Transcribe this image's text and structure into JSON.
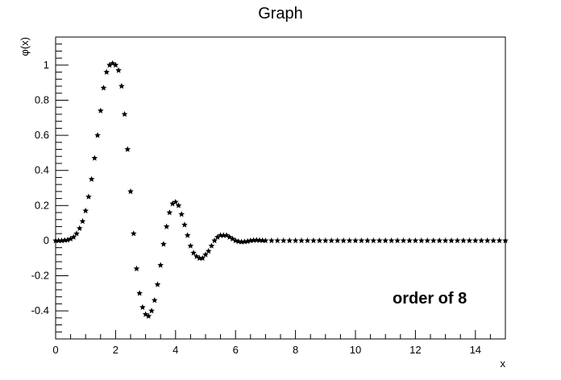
{
  "chart_data": {
    "type": "scatter",
    "title": "Graph",
    "xlabel": "x",
    "ylabel": "φ(x)",
    "annotation": "order of 8",
    "xlim": [
      0,
      15
    ],
    "ylim": [
      -0.56,
      1.16
    ],
    "xticks": [
      0,
      2,
      4,
      6,
      8,
      10,
      12,
      14
    ],
    "yticks": [
      -0.4,
      -0.2,
      0,
      0.2,
      0.4,
      0.6,
      0.8,
      1
    ],
    "xtick_labels": [
      "0",
      "2",
      "4",
      "6",
      "8",
      "10",
      "12",
      "14"
    ],
    "ytick_labels": [
      "-0.4",
      "-0.2",
      "0",
      "0.2",
      "0.4",
      "0.6",
      "0.8",
      "1"
    ],
    "marker": "star",
    "marker_color": "#000000",
    "grid": false,
    "series": [
      {
        "x": [
          0,
          0.1,
          0.2,
          0.3,
          0.4,
          0.5,
          0.6,
          0.7,
          0.8,
          0.9,
          1.0,
          1.1,
          1.2,
          1.3,
          1.4,
          1.5,
          1.6,
          1.7,
          1.8,
          1.9,
          2.0,
          2.1,
          2.2,
          2.3,
          2.4,
          2.5,
          2.6,
          2.7,
          2.8,
          2.9,
          3.0,
          3.1,
          3.2,
          3.3,
          3.4,
          3.5,
          3.6,
          3.7,
          3.8,
          3.9,
          4.0,
          4.1,
          4.2,
          4.3,
          4.4,
          4.5,
          4.6,
          4.7,
          4.8,
          4.9,
          5.0,
          5.1,
          5.2,
          5.3,
          5.4,
          5.5,
          5.6,
          5.7,
          5.8,
          5.9,
          6.0,
          6.1,
          6.2,
          6.3,
          6.4,
          6.5,
          6.6,
          6.7,
          6.8,
          6.9,
          7.0,
          7.2,
          7.4,
          7.6,
          7.8,
          8.0,
          8.2,
          8.4,
          8.6,
          8.8,
          9.0,
          9.2,
          9.4,
          9.6,
          9.8,
          10.0,
          10.2,
          10.4,
          10.6,
          10.8,
          11.0,
          11.2,
          11.4,
          11.6,
          11.8,
          12.0,
          12.2,
          12.4,
          12.6,
          12.8,
          13.0,
          13.2,
          13.4,
          13.6,
          13.8,
          14.0,
          14.2,
          14.4,
          14.6,
          14.8,
          15.0
        ],
        "y": [
          0,
          0,
          0,
          0.002,
          0.004,
          0.01,
          0.02,
          0.04,
          0.07,
          0.11,
          0.17,
          0.25,
          0.35,
          0.47,
          0.6,
          0.74,
          0.87,
          0.96,
          1.0,
          1.01,
          1.0,
          0.97,
          0.88,
          0.72,
          0.52,
          0.28,
          0.04,
          -0.16,
          -0.3,
          -0.38,
          -0.42,
          -0.43,
          -0.4,
          -0.34,
          -0.25,
          -0.14,
          -0.02,
          0.08,
          0.16,
          0.21,
          0.22,
          0.2,
          0.15,
          0.09,
          0.03,
          -0.03,
          -0.07,
          -0.09,
          -0.1,
          -0.1,
          -0.08,
          -0.06,
          -0.03,
          0.0,
          0.02,
          0.03,
          0.03,
          0.03,
          0.02,
          0.01,
          0.0,
          -0.005,
          -0.007,
          -0.006,
          -0.004,
          0.0,
          0.002,
          0.003,
          0.002,
          0.001,
          0.0,
          0.0,
          0.0,
          0.0,
          0.0,
          0.0,
          0.0,
          0.0,
          0.0,
          0.0,
          0.0,
          0.0,
          0.0,
          0.0,
          0.0,
          0.0,
          0.0,
          0.0,
          0.0,
          0.0,
          0.0,
          0.0,
          0.0,
          0.0,
          0.0,
          0.0,
          0.0,
          0.0,
          0.0,
          0.0,
          0.0,
          0.0,
          0.0,
          0.0,
          0.0,
          0.0,
          0.0,
          0.0,
          0.0,
          0.0,
          0.0
        ]
      }
    ]
  }
}
